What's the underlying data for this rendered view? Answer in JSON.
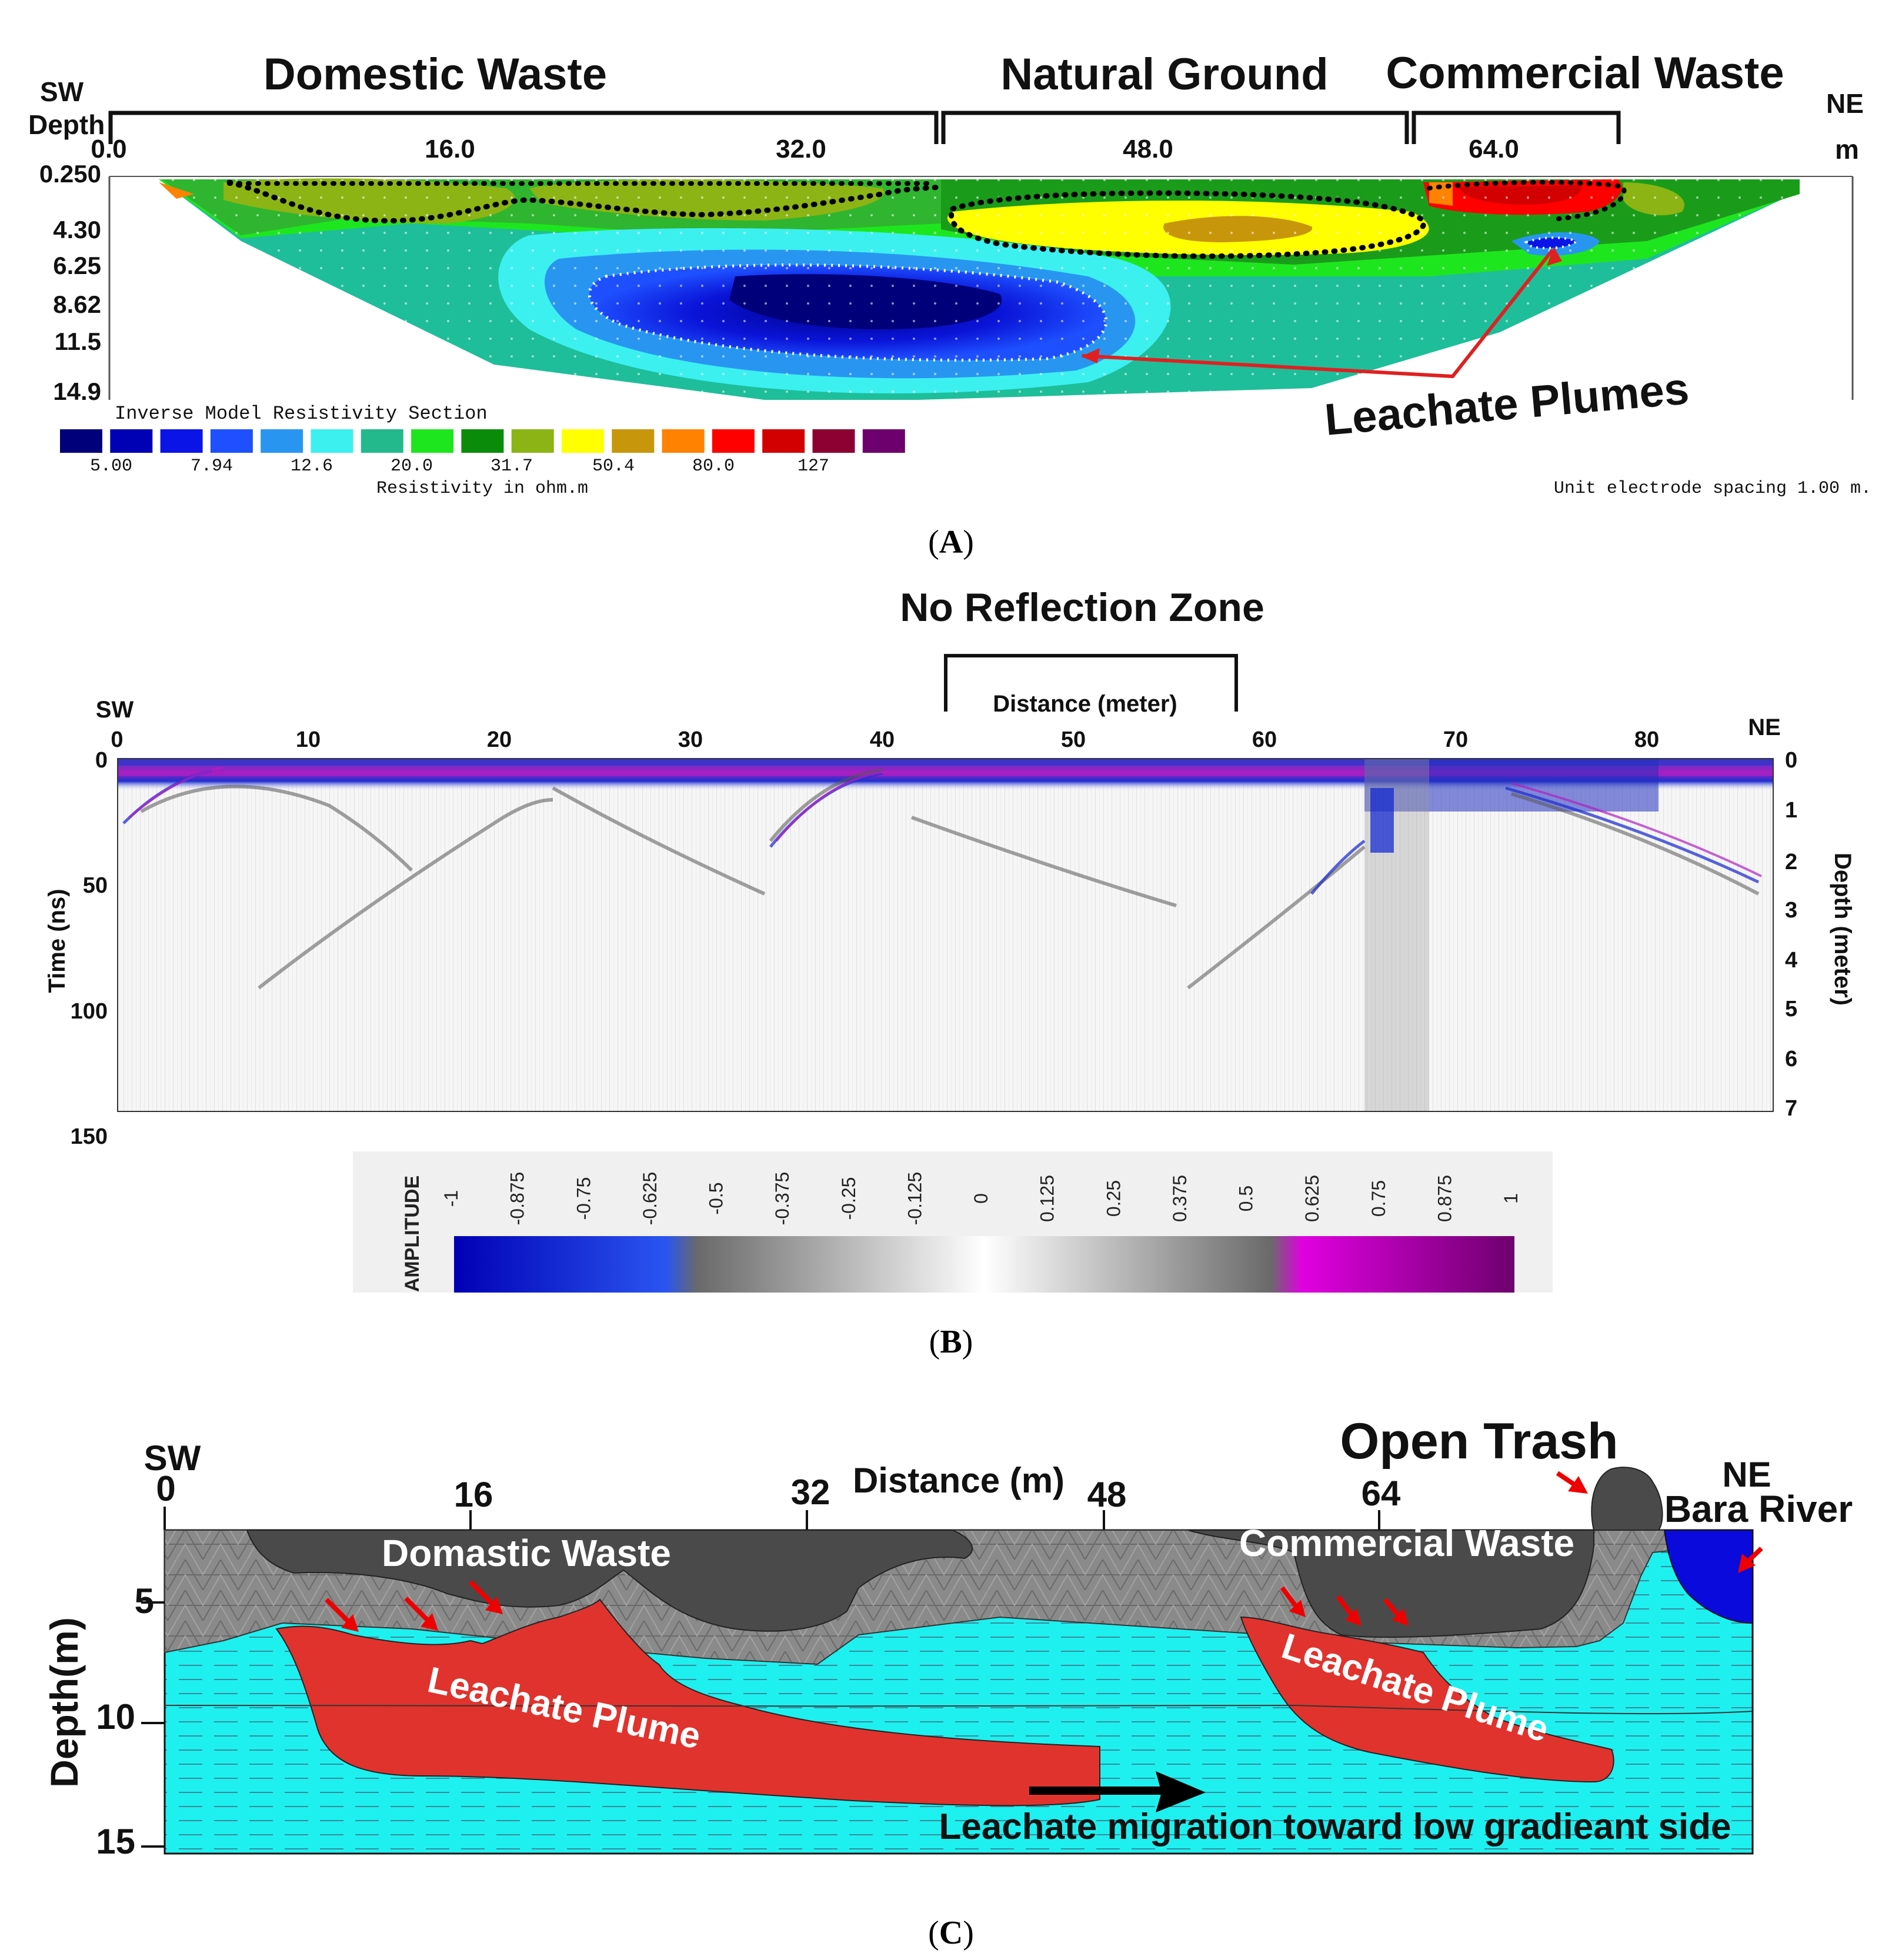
{
  "panelA": {
    "top_labels": [
      "Domestic Waste",
      "Natural Ground",
      "Commercial Waste"
    ],
    "sw": "SW",
    "depth_label": "Depth",
    "ne": "NE",
    "m": "m",
    "x_ticks": [
      "0.0",
      "16.0",
      "32.0",
      "48.0",
      "64.0"
    ],
    "depth_ticks": [
      "0.250",
      "4.30",
      "6.25",
      "8.62",
      "11.5",
      "14.9"
    ],
    "section_title": "Inverse Model Resistivity Section",
    "scale_values": [
      "5.00",
      "7.94",
      "12.6",
      "20.0",
      "31.7",
      "50.4",
      "80.0",
      "127"
    ],
    "scale_colors": [
      "#00007a",
      "#0000b4",
      "#0a14e6",
      "#1e50ff",
      "#2896f0",
      "#3cf0f0",
      "#23b98c",
      "#1ee61e",
      "#0a8c0a",
      "#8cb414",
      "#ffff00",
      "#c8960a",
      "#ff8200",
      "#ff0000",
      "#d20000",
      "#8c0032",
      "#6e006e"
    ],
    "scale_unit": "Resistivity in ohm.m",
    "spacing": "Unit electrode spacing 1.00 m.",
    "annotation": "Leachate Plumes",
    "caption": "A"
  },
  "panelB": {
    "title": "No Reflection Zone",
    "xlabel": "Distance (meter)",
    "sw": "SW",
    "ne": "NE",
    "x_ticks": [
      "0",
      "10",
      "20",
      "30",
      "40",
      "50",
      "60",
      "70",
      "80"
    ],
    "time_label": "Time (ns)",
    "time_ticks": [
      "0",
      "50",
      "100",
      "150"
    ],
    "depth_label": "Depth (meter)",
    "depth_ticks": [
      "0",
      "1",
      "2",
      "3",
      "4",
      "5",
      "6",
      "7"
    ],
    "amplitude_label": "AMPLITUDE",
    "amplitude_ticks": [
      "-1",
      "-0.875",
      "-0.75",
      "-0.625",
      "-0.5",
      "-0.375",
      "-0.25",
      "-0.125",
      "0",
      "0.125",
      "0.25",
      "0.375",
      "0.5",
      "0.625",
      "0.75",
      "0.875",
      "1"
    ],
    "caption": "B"
  },
  "panelC": {
    "sw": "SW",
    "ne": "NE",
    "x_ticks": [
      "0",
      "16",
      "32",
      "48",
      "64"
    ],
    "distance_label": "Distance (m)",
    "depth_label": "Depth(m)",
    "depth_ticks": [
      "5",
      "10",
      "15"
    ],
    "open_trash": "Open Trash",
    "bara_river": "Bara River",
    "domestic": "Domastic Waste",
    "commercial": "Commercial Waste",
    "plume1": "Leachate Plume",
    "plume2": "Leachate  Plume",
    "migration": "Leachate migration toward low gradieant side",
    "caption": "C"
  }
}
